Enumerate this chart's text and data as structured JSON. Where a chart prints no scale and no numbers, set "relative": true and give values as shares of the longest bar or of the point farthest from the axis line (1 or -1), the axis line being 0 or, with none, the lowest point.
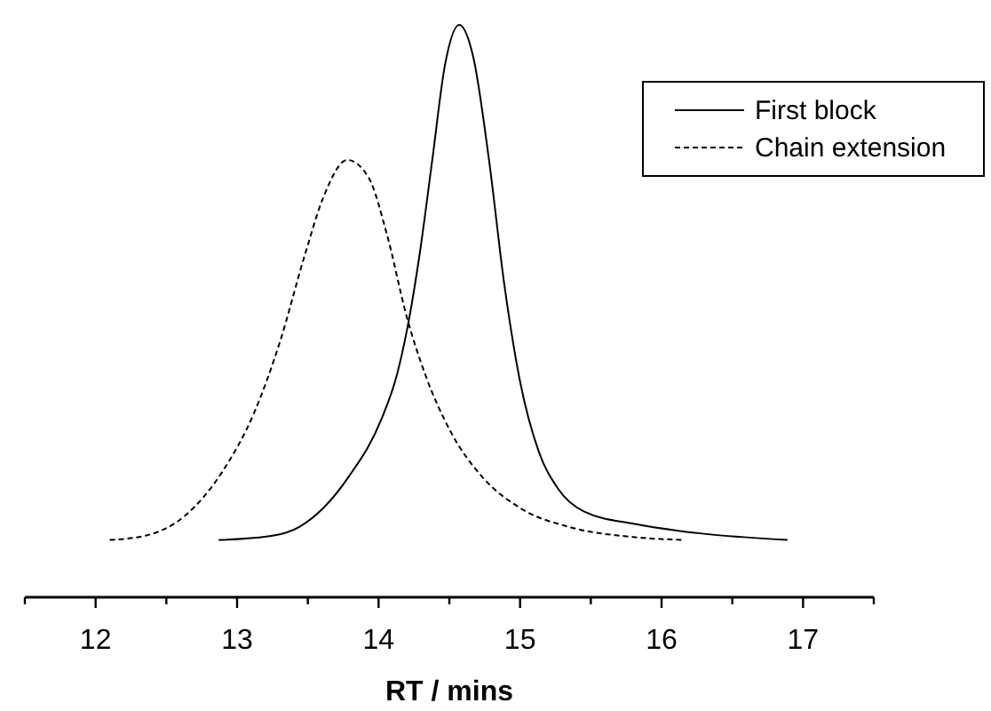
{
  "chart_data": {
    "type": "line",
    "xlabel": "RT / mins",
    "relative": true,
    "tick_labels": "x",
    "legend": "top right",
    "grid": false,
    "xlim": [
      11.5,
      17.5
    ],
    "xticks": [
      {
        "value": 11.5,
        "label": null
      },
      12,
      {
        "value": 12.5,
        "label": null
      },
      13,
      {
        "value": 13.5,
        "label": null
      },
      14,
      {
        "value": 14.5,
        "label": null
      },
      15,
      {
        "value": 15.5,
        "label": null
      },
      16,
      {
        "value": 16.5,
        "label": null
      },
      17,
      {
        "value": 17.5,
        "label": null
      }
    ],
    "series": [
      {
        "name": "First block",
        "color": "#000000",
        "line_style": "solid",
        "x": [
          12.87,
          13.26,
          13.44,
          13.61,
          13.79,
          14.02,
          14.13,
          14.2,
          14.29,
          14.38,
          14.47,
          14.57,
          14.67,
          14.78,
          14.89,
          15.0,
          15.13,
          15.27,
          15.45,
          15.81,
          16.26,
          16.89
        ],
        "values": [
          0.1,
          0.108,
          0.123,
          0.156,
          0.211,
          0.311,
          0.389,
          0.466,
          0.599,
          0.765,
          0.931,
          1.0,
          0.943,
          0.765,
          0.544,
          0.377,
          0.256,
          0.189,
          0.15,
          0.128,
          0.112,
          0.1
        ]
      },
      {
        "name": "Chain extension",
        "color": "#000000",
        "line_style": "dashed",
        "x": [
          12.1,
          12.36,
          12.63,
          12.9,
          13.12,
          13.3,
          13.48,
          13.61,
          13.78,
          13.93,
          14.06,
          14.2,
          14.33,
          14.51,
          14.73,
          15.0,
          15.36,
          15.81,
          16.16
        ],
        "values": [
          0.1,
          0.108,
          0.142,
          0.221,
          0.322,
          0.444,
          0.599,
          0.699,
          0.764,
          0.733,
          0.633,
          0.489,
          0.389,
          0.289,
          0.211,
          0.156,
          0.122,
          0.105,
          0.1
        ]
      }
    ]
  }
}
